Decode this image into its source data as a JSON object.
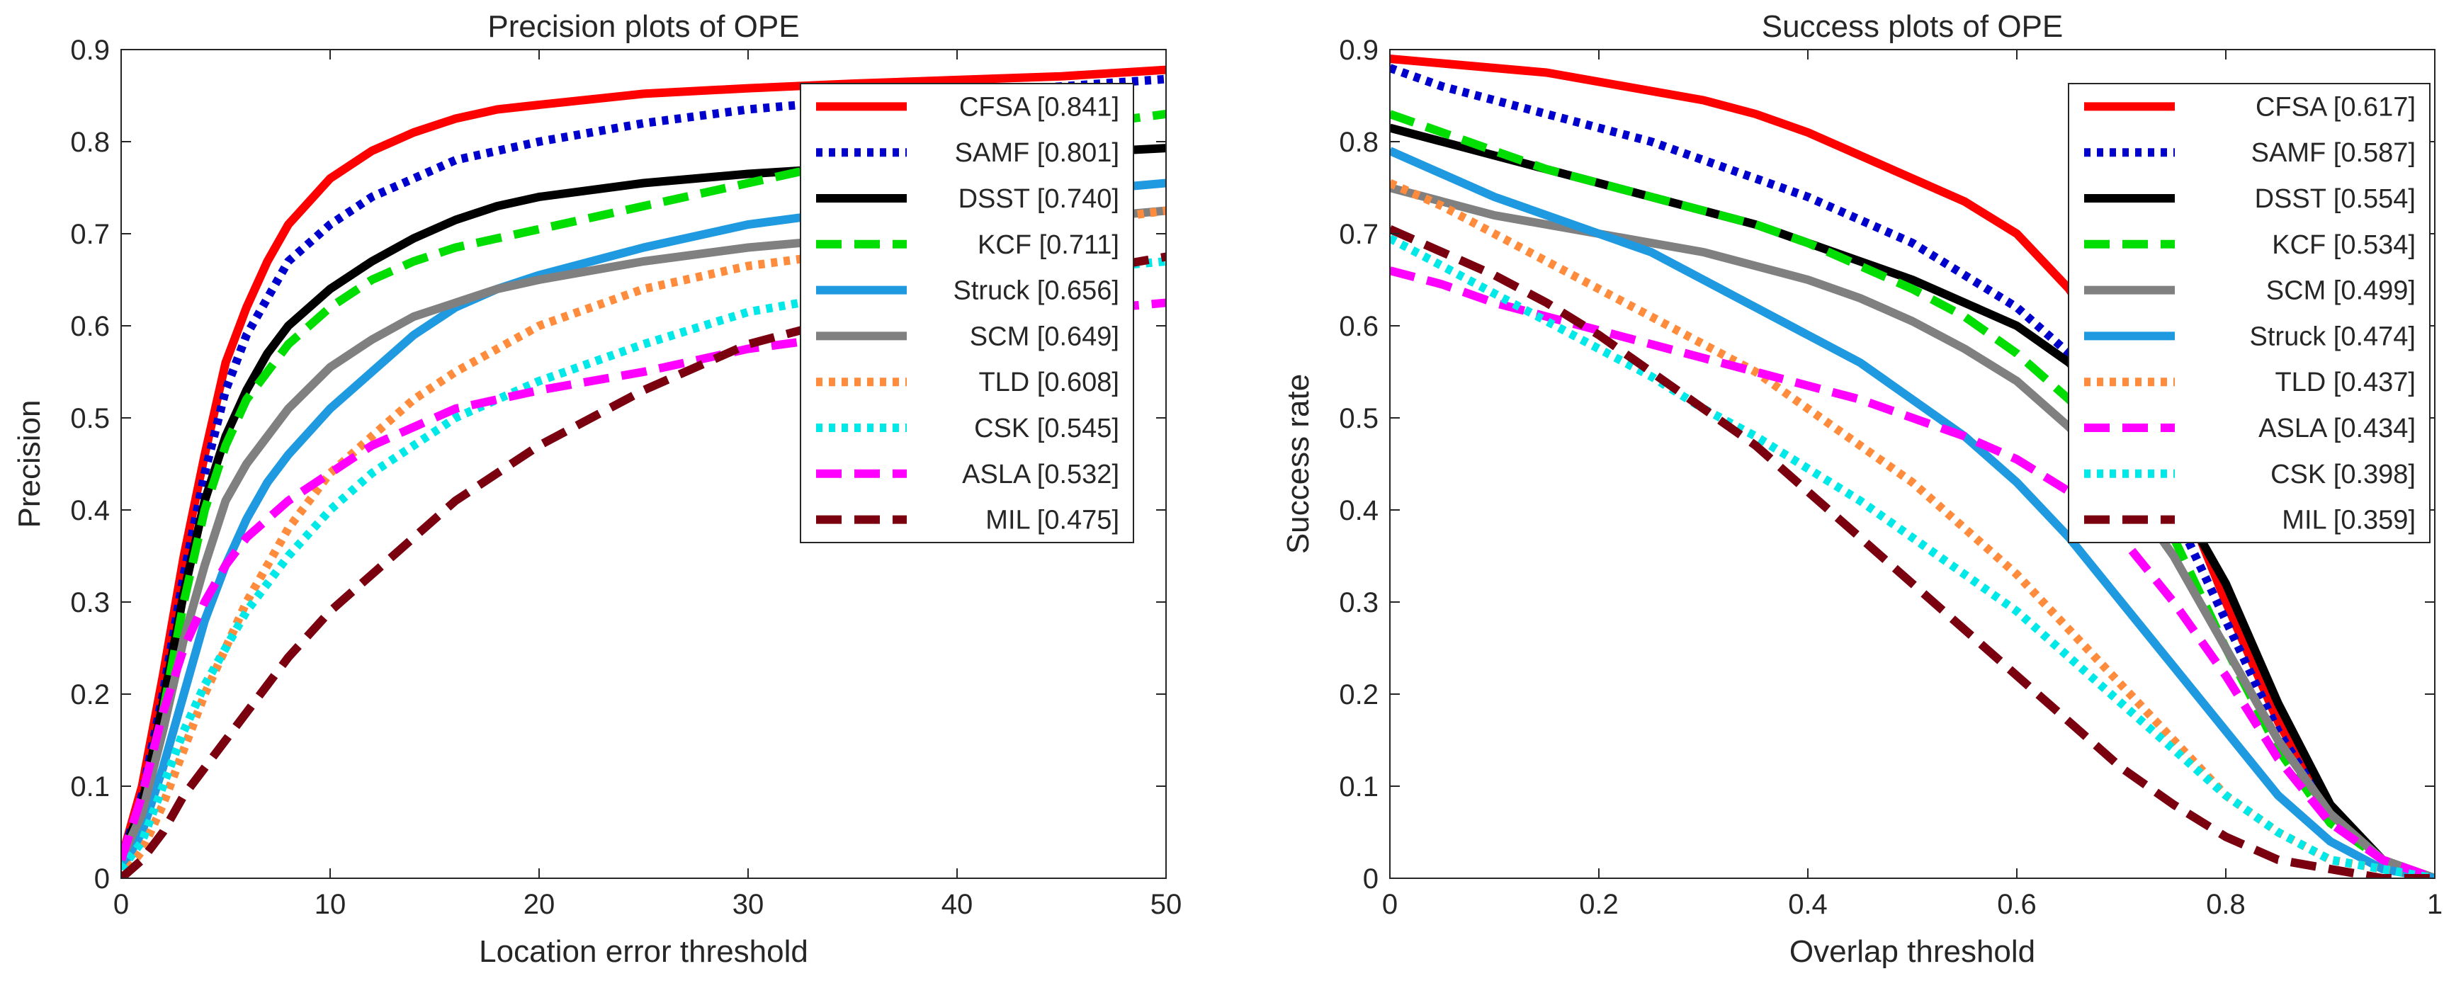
{
  "chart_data": [
    {
      "type": "line",
      "title": "Precision plots of OPE",
      "xlabel": "Location error threshold",
      "ylabel": "Precision",
      "xlim": [
        0,
        50
      ],
      "ylim": [
        0,
        0.9
      ],
      "xticks": [
        0,
        10,
        20,
        30,
        40,
        50
      ],
      "xtick_labels": [
        "0",
        "10",
        "20",
        "30",
        "40",
        "50"
      ],
      "yticks": [
        0,
        0.1,
        0.2,
        0.3,
        0.4,
        0.5,
        0.6,
        0.7,
        0.8,
        0.9
      ],
      "ytick_labels": [
        "0",
        "0.1",
        "0.2",
        "0.3",
        "0.4",
        "0.5",
        "0.6",
        "0.7",
        "0.8",
        "0.9"
      ],
      "legend_position": "top-right",
      "x": [
        0,
        1,
        2,
        3,
        4,
        5,
        6,
        7,
        8,
        10,
        12,
        14,
        16,
        18,
        20,
        25,
        30,
        35,
        40,
        45,
        50
      ],
      "series": [
        {
          "name": "CFSA",
          "label": "CFSA [0.841]",
          "color": "#ff0000",
          "dash": "solid",
          "values": [
            0.02,
            0.1,
            0.22,
            0.35,
            0.46,
            0.56,
            0.62,
            0.67,
            0.71,
            0.76,
            0.79,
            0.81,
            0.825,
            0.835,
            0.84,
            0.852,
            0.858,
            0.863,
            0.867,
            0.871,
            0.878
          ]
        },
        {
          "name": "SAMF",
          "label": "SAMF [0.801]",
          "color": "#0000cc",
          "dash": "dot",
          "values": [
            0.02,
            0.09,
            0.2,
            0.33,
            0.44,
            0.53,
            0.59,
            0.63,
            0.67,
            0.71,
            0.74,
            0.76,
            0.78,
            0.79,
            0.8,
            0.82,
            0.835,
            0.845,
            0.852,
            0.86,
            0.868
          ]
        },
        {
          "name": "DSST",
          "label": "DSST [0.740]",
          "color": "#000000",
          "dash": "solid",
          "values": [
            0.02,
            0.08,
            0.19,
            0.31,
            0.41,
            0.48,
            0.53,
            0.57,
            0.6,
            0.64,
            0.67,
            0.695,
            0.715,
            0.73,
            0.74,
            0.755,
            0.765,
            0.772,
            0.78,
            0.787,
            0.793
          ]
        },
        {
          "name": "KCF",
          "label": "KCF [0.711]",
          "color": "#00dd00",
          "dash": "dash",
          "values": [
            0.02,
            0.08,
            0.18,
            0.3,
            0.4,
            0.47,
            0.52,
            0.55,
            0.58,
            0.62,
            0.65,
            0.67,
            0.685,
            0.695,
            0.705,
            0.73,
            0.755,
            0.78,
            0.8,
            0.815,
            0.83
          ]
        },
        {
          "name": "Struck",
          "label": "Struck [0.656]",
          "color": "#1f9ae0",
          "dash": "solid",
          "values": [
            0.01,
            0.05,
            0.12,
            0.2,
            0.28,
            0.34,
            0.39,
            0.43,
            0.46,
            0.51,
            0.55,
            0.59,
            0.62,
            0.64,
            0.655,
            0.685,
            0.71,
            0.725,
            0.735,
            0.745,
            0.755
          ]
        },
        {
          "name": "SCM",
          "label": "SCM [0.649]",
          "color": "#808080",
          "dash": "solid",
          "values": [
            0.02,
            0.07,
            0.16,
            0.26,
            0.34,
            0.41,
            0.45,
            0.48,
            0.51,
            0.555,
            0.585,
            0.61,
            0.625,
            0.64,
            0.65,
            0.67,
            0.685,
            0.695,
            0.705,
            0.715,
            0.725
          ]
        },
        {
          "name": "TLD",
          "label": "TLD [0.608]",
          "color": "#ff8c3c",
          "dash": "dot",
          "values": [
            0.0,
            0.03,
            0.08,
            0.14,
            0.2,
            0.25,
            0.3,
            0.34,
            0.38,
            0.44,
            0.48,
            0.52,
            0.55,
            0.575,
            0.6,
            0.64,
            0.665,
            0.68,
            0.695,
            0.71,
            0.725
          ]
        },
        {
          "name": "CSK",
          "label": "CSK [0.545]",
          "color": "#00e8e8",
          "dash": "dot",
          "values": [
            0.01,
            0.04,
            0.1,
            0.16,
            0.21,
            0.25,
            0.29,
            0.32,
            0.35,
            0.4,
            0.44,
            0.47,
            0.5,
            0.52,
            0.54,
            0.58,
            0.615,
            0.635,
            0.65,
            0.66,
            0.67
          ]
        },
        {
          "name": "ASLA",
          "label": "ASLA [0.532]",
          "color": "#ff00ff",
          "dash": "dash",
          "values": [
            0.02,
            0.09,
            0.18,
            0.25,
            0.3,
            0.34,
            0.37,
            0.39,
            0.41,
            0.44,
            0.47,
            0.49,
            0.51,
            0.52,
            0.53,
            0.55,
            0.575,
            0.59,
            0.605,
            0.615,
            0.625
          ]
        },
        {
          "name": "MIL",
          "label": "MIL [0.475]",
          "color": "#7a0010",
          "dash": "dash",
          "values": [
            0.0,
            0.02,
            0.05,
            0.09,
            0.12,
            0.15,
            0.18,
            0.21,
            0.24,
            0.29,
            0.33,
            0.37,
            0.41,
            0.44,
            0.47,
            0.53,
            0.58,
            0.61,
            0.635,
            0.655,
            0.675
          ]
        }
      ]
    },
    {
      "type": "line",
      "title": "Success plots of OPE",
      "xlabel": "Overlap threshold",
      "ylabel": "Success rate",
      "xlim": [
        0,
        1
      ],
      "ylim": [
        0,
        0.9
      ],
      "xticks": [
        0,
        0.2,
        0.4,
        0.6,
        0.8,
        1
      ],
      "xtick_labels": [
        "0",
        "0.2",
        "0.4",
        "0.6",
        "0.8",
        "1"
      ],
      "yticks": [
        0,
        0.1,
        0.2,
        0.3,
        0.4,
        0.5,
        0.6,
        0.7,
        0.8,
        0.9
      ],
      "ytick_labels": [
        "0",
        "0.1",
        "0.2",
        "0.3",
        "0.4",
        "0.5",
        "0.6",
        "0.7",
        "0.8",
        "0.9"
      ],
      "legend_position": "top-right",
      "x": [
        0,
        0.05,
        0.1,
        0.15,
        0.2,
        0.25,
        0.3,
        0.35,
        0.4,
        0.45,
        0.5,
        0.55,
        0.6,
        0.65,
        0.7,
        0.75,
        0.8,
        0.85,
        0.9,
        0.95,
        1.0
      ],
      "series": [
        {
          "name": "CFSA",
          "label": "CFSA [0.617]",
          "color": "#ff0000",
          "dash": "solid",
          "values": [
            0.89,
            0.885,
            0.88,
            0.875,
            0.865,
            0.855,
            0.845,
            0.83,
            0.81,
            0.785,
            0.76,
            0.735,
            0.7,
            0.64,
            0.55,
            0.44,
            0.3,
            0.17,
            0.07,
            0.02,
            0.0
          ]
        },
        {
          "name": "SAMF",
          "label": "SAMF [0.587]",
          "color": "#0000cc",
          "dash": "dot",
          "values": [
            0.88,
            0.86,
            0.845,
            0.83,
            0.815,
            0.8,
            0.78,
            0.76,
            0.74,
            0.715,
            0.69,
            0.655,
            0.62,
            0.57,
            0.5,
            0.4,
            0.28,
            0.16,
            0.07,
            0.02,
            0.0
          ]
        },
        {
          "name": "DSST",
          "label": "DSST [0.554]",
          "color": "#000000",
          "dash": "solid",
          "values": [
            0.815,
            0.8,
            0.785,
            0.77,
            0.755,
            0.74,
            0.725,
            0.71,
            0.69,
            0.67,
            0.65,
            0.625,
            0.6,
            0.56,
            0.5,
            0.42,
            0.32,
            0.19,
            0.08,
            0.02,
            0.0
          ]
        },
        {
          "name": "KCF",
          "label": "KCF [0.534]",
          "color": "#00dd00",
          "dash": "dash",
          "values": [
            0.83,
            0.81,
            0.79,
            0.77,
            0.755,
            0.74,
            0.725,
            0.71,
            0.69,
            0.665,
            0.64,
            0.61,
            0.57,
            0.52,
            0.46,
            0.37,
            0.25,
            0.14,
            0.06,
            0.02,
            0.0
          ]
        },
        {
          "name": "SCM",
          "label": "SCM [0.499]",
          "color": "#808080",
          "dash": "solid",
          "values": [
            0.75,
            0.735,
            0.72,
            0.71,
            0.7,
            0.69,
            0.68,
            0.665,
            0.65,
            0.63,
            0.605,
            0.575,
            0.54,
            0.49,
            0.43,
            0.35,
            0.25,
            0.15,
            0.07,
            0.02,
            0.0
          ]
        },
        {
          "name": "Struck",
          "label": "Struck [0.474]",
          "color": "#1f9ae0",
          "dash": "solid",
          "values": [
            0.79,
            0.765,
            0.74,
            0.72,
            0.7,
            0.68,
            0.65,
            0.62,
            0.59,
            0.56,
            0.52,
            0.48,
            0.43,
            0.37,
            0.3,
            0.23,
            0.16,
            0.09,
            0.04,
            0.01,
            0.0
          ]
        },
        {
          "name": "TLD",
          "label": "TLD [0.437]",
          "color": "#ff8c3c",
          "dash": "dot",
          "values": [
            0.755,
            0.73,
            0.7,
            0.67,
            0.64,
            0.61,
            0.58,
            0.55,
            0.51,
            0.47,
            0.43,
            0.38,
            0.33,
            0.27,
            0.21,
            0.15,
            0.09,
            0.05,
            0.02,
            0.01,
            0.0
          ]
        },
        {
          "name": "ASLA",
          "label": "ASLA [0.434]",
          "color": "#ff00ff",
          "dash": "dash",
          "values": [
            0.66,
            0.645,
            0.625,
            0.61,
            0.595,
            0.58,
            0.565,
            0.55,
            0.535,
            0.52,
            0.5,
            0.48,
            0.455,
            0.42,
            0.37,
            0.3,
            0.22,
            0.13,
            0.06,
            0.02,
            0.0
          ]
        },
        {
          "name": "CSK",
          "label": "CSK [0.398]",
          "color": "#00e8e8",
          "dash": "dot",
          "values": [
            0.695,
            0.665,
            0.635,
            0.605,
            0.575,
            0.545,
            0.51,
            0.48,
            0.445,
            0.41,
            0.37,
            0.33,
            0.29,
            0.24,
            0.19,
            0.14,
            0.09,
            0.05,
            0.02,
            0.01,
            0.0
          ]
        },
        {
          "name": "MIL",
          "label": "MIL [0.359]",
          "color": "#7a0010",
          "dash": "dash",
          "values": [
            0.705,
            0.68,
            0.655,
            0.625,
            0.59,
            0.55,
            0.51,
            0.47,
            0.42,
            0.37,
            0.32,
            0.27,
            0.22,
            0.17,
            0.12,
            0.08,
            0.045,
            0.02,
            0.01,
            0.0,
            0.0
          ]
        }
      ]
    }
  ]
}
